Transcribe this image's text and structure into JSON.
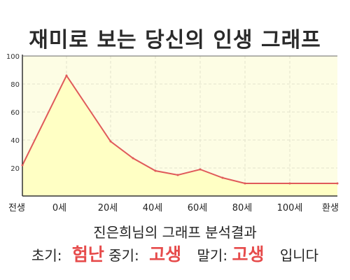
{
  "chart_data": {
    "type": "area",
    "title": "재미로 보는 당신의 인생 그래프",
    "x_tick_labels": [
      "전생",
      "0세",
      "20세",
      "40세",
      "60세",
      "80세",
      "100세",
      "환생"
    ],
    "y_ticks": [
      20,
      40,
      60,
      80,
      100
    ],
    "ylim": [
      0,
      100
    ],
    "grid": true,
    "points": [
      {
        "x": "전생",
        "y": 22
      },
      {
        "x": "0세",
        "y": 86
      },
      {
        "x": "20세",
        "y": 39
      },
      {
        "x": "30세",
        "y": 27
      },
      {
        "x": "40세",
        "y": 18
      },
      {
        "x": "50세",
        "y": 15
      },
      {
        "x": "60세",
        "y": 19
      },
      {
        "x": "70세",
        "y": 13
      },
      {
        "x": "80세",
        "y": 9
      },
      {
        "x": "100세",
        "y": 9
      },
      {
        "x": "환생",
        "y": 9
      }
    ],
    "colors": {
      "line": "#e05a5a",
      "fill": "#ffffc4",
      "plot_bg": "#fdfde4",
      "grid": "#e2e2cc"
    }
  },
  "summary": {
    "text": "진은희님의 그래프 분석결과",
    "early_label": "초기:",
    "early_value": "험난",
    "mid_label": "중기:",
    "mid_value": "고생",
    "late_label": "말기:",
    "late_value": "고생",
    "ending": "입니다"
  }
}
